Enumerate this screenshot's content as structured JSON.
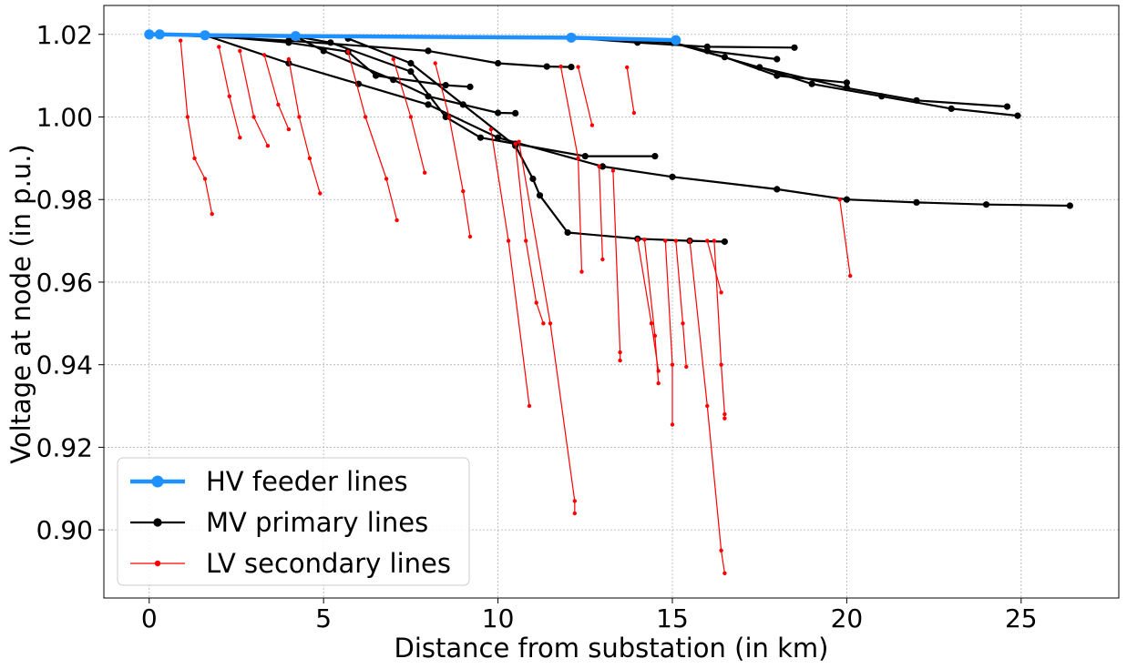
{
  "chart_data": {
    "type": "line",
    "xlabel": "Distance from substation (in km)",
    "ylabel": "Voltage at node (in p.u.)",
    "xlim": [
      -1.3,
      27.8
    ],
    "ylim": [
      0.8835,
      1.027
    ],
    "xticks": [
      0,
      5,
      10,
      15,
      20,
      25
    ],
    "yticks": [
      0.9,
      0.92,
      0.94,
      0.96,
      0.98,
      1.0,
      1.02
    ],
    "ytick_labels": [
      "0.90",
      "0.92",
      "0.94",
      "0.96",
      "0.98",
      "1.00",
      "1.02"
    ],
    "grid": true,
    "legend_position": "lower-left",
    "series": [
      {
        "name": "HV feeder lines",
        "color": "#1e90ff",
        "role": "hv",
        "paths": [
          [
            [
              0,
              1.02
            ],
            [
              0.3,
              1.02
            ],
            [
              1.6,
              1.0198
            ],
            [
              4.2,
              1.0196
            ],
            [
              12.1,
              1.0192
            ],
            [
              15.1,
              1.0186
            ]
          ]
        ]
      },
      {
        "name": "MV primary lines",
        "color": "#000000",
        "role": "mv",
        "paths": [
          [
            [
              0.3,
              1.02
            ],
            [
              4,
              1.0185
            ],
            [
              8,
              1.016
            ],
            [
              10,
              1.013
            ],
            [
              11.4,
              1.0122
            ],
            [
              12.1,
              1.0121
            ]
          ],
          [
            [
              1.6,
              1.0198
            ],
            [
              4,
              1.018
            ],
            [
              5.7,
              1.0158
            ],
            [
              6.5,
              1.01
            ],
            [
              8.5,
              1.0077
            ],
            [
              9.2,
              1.0073
            ]
          ],
          [
            [
              4.2,
              1.0195
            ],
            [
              5,
              1.016
            ],
            [
              7,
              1.009
            ],
            [
              8,
              1.005
            ],
            [
              10,
              1.001
            ],
            [
              10.5,
              1.0009
            ]
          ],
          [
            [
              4.2,
              1.0195
            ],
            [
              5.2,
              1.018
            ],
            [
              7.5,
              1.011
            ],
            [
              8.5,
              1.0
            ],
            [
              9.5,
              0.995
            ],
            [
              10.5,
              0.9935
            ],
            [
              12.5,
              0.9905
            ],
            [
              14.5,
              0.9905
            ]
          ],
          [
            [
              1.6,
              1.0198
            ],
            [
              4,
              1.013
            ],
            [
              6,
              1.008
            ],
            [
              8,
              1.003
            ],
            [
              10,
              0.995
            ],
            [
              13,
              0.988
            ],
            [
              15,
              0.9855
            ],
            [
              18,
              0.9825
            ],
            [
              20,
              0.98
            ],
            [
              22,
              0.9793
            ],
            [
              24,
              0.9788
            ],
            [
              26.4,
              0.9785
            ]
          ],
          [
            [
              5.7,
              1.019
            ],
            [
              7.5,
              1.013
            ],
            [
              9,
              1.003
            ],
            [
              10.5,
              0.993
            ],
            [
              11,
              0.985
            ],
            [
              11.2,
              0.981
            ],
            [
              12,
              0.972
            ],
            [
              14,
              0.9705
            ],
            [
              15.5,
              0.97
            ],
            [
              16.5,
              0.9698
            ]
          ],
          [
            [
              12.1,
              1.0192
            ],
            [
              14,
              1.018
            ],
            [
              16,
              1.017
            ],
            [
              18.5,
              1.0168
            ]
          ],
          [
            [
              12.1,
              1.0192
            ],
            [
              15,
              1.018
            ],
            [
              16,
              1.016
            ],
            [
              18,
              1.014
            ]
          ],
          [
            [
              15,
              1.018
            ],
            [
              16.5,
              1.0145
            ],
            [
              18,
              1.01
            ],
            [
              20,
              1.0083
            ]
          ],
          [
            [
              15,
              1.018
            ],
            [
              17.5,
              1.012
            ],
            [
              20,
              1.007
            ],
            [
              22,
              1.004
            ],
            [
              24.6,
              1.0025
            ]
          ],
          [
            [
              17.5,
              1.012
            ],
            [
              19,
              1.008
            ],
            [
              21,
              1.005
            ],
            [
              23,
              1.002
            ],
            [
              24.9,
              1.0003
            ]
          ]
        ]
      },
      {
        "name": "LV secondary lines",
        "color": "#ff0000",
        "role": "lv",
        "paths": [
          [
            [
              0.9,
              1.0185
            ],
            [
              1.1,
              1.0
            ],
            [
              1.3,
              0.99
            ],
            [
              1.6,
              0.985
            ],
            [
              1.8,
              0.9765
            ]
          ],
          [
            [
              2.0,
              1.017
            ],
            [
              2.3,
              1.005
            ],
            [
              2.6,
              0.995
            ]
          ],
          [
            [
              2.6,
              1.016
            ],
            [
              3.0,
              1.0
            ],
            [
              3.4,
              0.993
            ]
          ],
          [
            [
              3.3,
              1.015
            ],
            [
              3.7,
              1.003
            ],
            [
              4.0,
              0.997
            ]
          ],
          [
            [
              4.0,
              1.014
            ],
            [
              4.3,
              1.0
            ],
            [
              4.6,
              0.99
            ],
            [
              4.9,
              0.9815
            ]
          ],
          [
            [
              5.7,
              1.0158
            ],
            [
              6.2,
              1.0
            ],
            [
              6.8,
              0.985
            ],
            [
              7.1,
              0.975
            ]
          ],
          [
            [
              7.0,
              1.014
            ],
            [
              7.5,
              1.0
            ],
            [
              7.9,
              0.9865
            ]
          ],
          [
            [
              8.2,
              1.013
            ],
            [
              8.6,
              1.0
            ],
            [
              9.0,
              0.982
            ],
            [
              9.2,
              0.971
            ]
          ],
          [
            [
              10.5,
              0.9935
            ],
            [
              10.8,
              0.97
            ],
            [
              11.1,
              0.955
            ],
            [
              11.3,
              0.95
            ]
          ],
          [
            [
              9.8,
              0.997
            ],
            [
              10.3,
              0.97
            ],
            [
              10.9,
              0.93
            ]
          ],
          [
            [
              10.6,
              0.994
            ],
            [
              11.5,
              0.95
            ],
            [
              12.2,
              0.907
            ],
            [
              12.2,
              0.904
            ]
          ],
          [
            [
              11.8,
              1.0122
            ],
            [
              12.3,
              0.99
            ],
            [
              12.4,
              0.9625
            ]
          ],
          [
            [
              12.9,
              0.988
            ],
            [
              13.0,
              0.9655
            ]
          ],
          [
            [
              13.3,
              0.987
            ],
            [
              13.5,
              0.943
            ],
            [
              13.5,
              0.941
            ]
          ],
          [
            [
              14.0,
              0.9703
            ],
            [
              14.4,
              0.95
            ],
            [
              14.6,
              0.9385
            ]
          ],
          [
            [
              14.2,
              0.9703
            ],
            [
              14.5,
              0.947
            ],
            [
              14.6,
              0.9355
            ]
          ],
          [
            [
              14.8,
              0.97
            ],
            [
              15.0,
              0.94
            ],
            [
              15.0,
              0.9255
            ]
          ],
          [
            [
              15.1,
              0.97
            ],
            [
              15.3,
              0.95
            ],
            [
              15.4,
              0.9395
            ]
          ],
          [
            [
              15.5,
              0.97
            ],
            [
              16.0,
              0.93
            ],
            [
              16.4,
              0.895
            ],
            [
              16.5,
              0.8895
            ]
          ],
          [
            [
              16.2,
              0.97
            ],
            [
              16.4,
              0.94
            ],
            [
              16.5,
              0.928
            ],
            [
              16.5,
              0.927
            ]
          ],
          [
            [
              16.0,
              0.97
            ],
            [
              16.4,
              0.9575
            ]
          ],
          [
            [
              19.8,
              0.98
            ],
            [
              20.1,
              0.9615
            ]
          ],
          [
            [
              13.7,
              1.012
            ],
            [
              13.9,
              1.001
            ]
          ],
          [
            [
              12.3,
              1.0121
            ],
            [
              12.7,
              0.998
            ]
          ]
        ]
      }
    ]
  }
}
